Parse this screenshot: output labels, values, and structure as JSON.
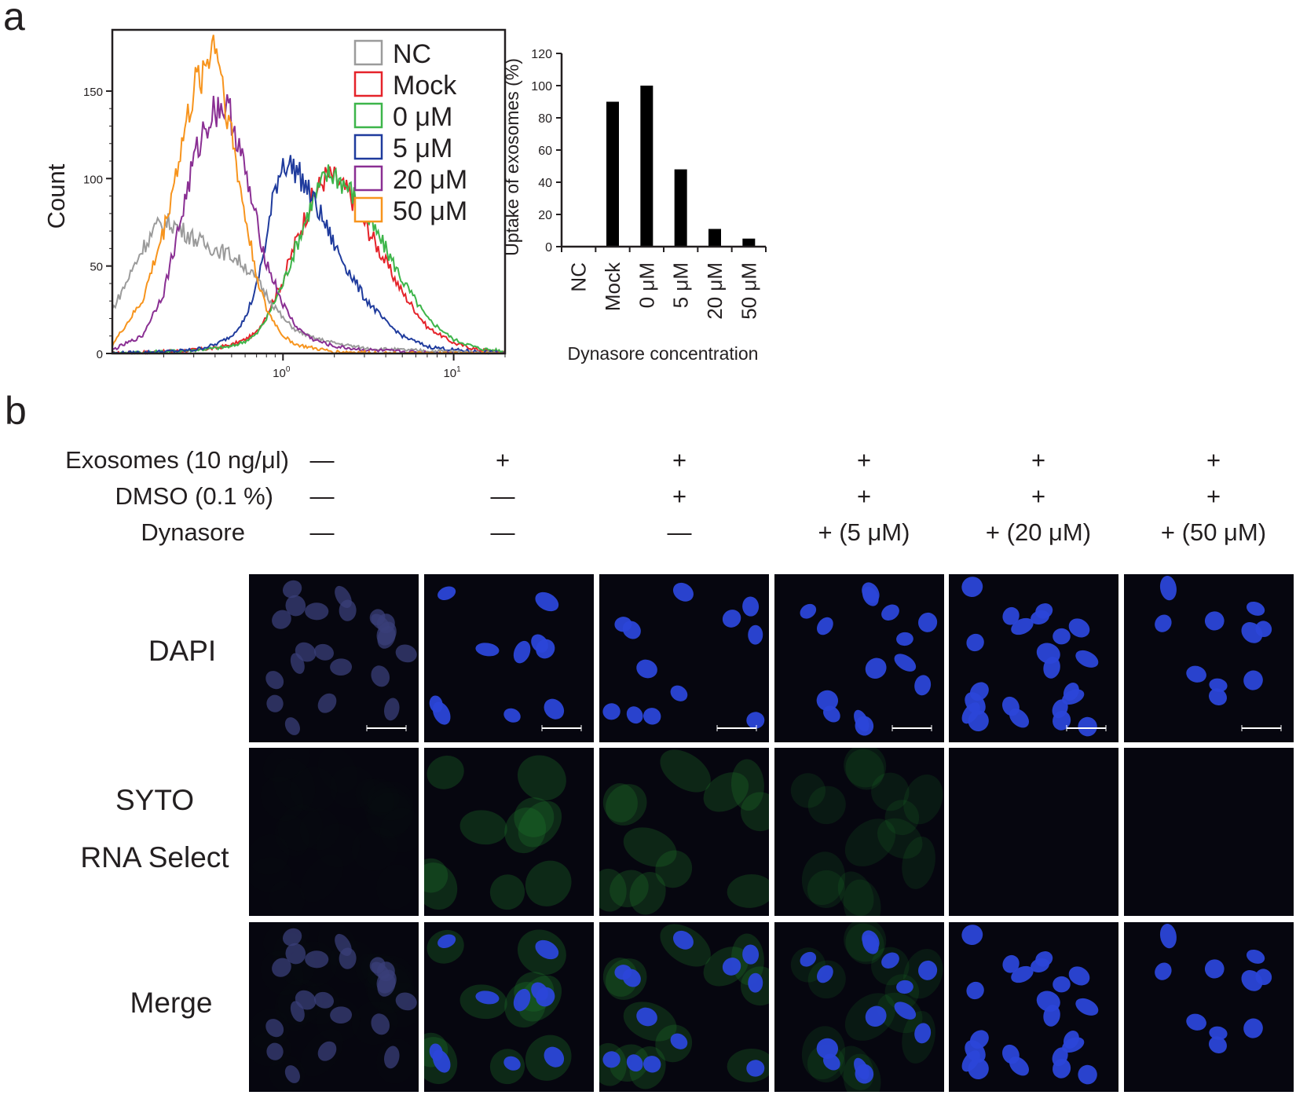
{
  "panel_a": {
    "letter": "a",
    "histogram": {
      "y_label": "Count",
      "y_ticks": [
        "0",
        "50",
        "100",
        "150"
      ],
      "x_ticks": [
        {
          "base": "10",
          "exp": "0"
        },
        {
          "base": "10",
          "exp": "1"
        }
      ],
      "legend": [
        {
          "name": "NC",
          "color": "#9b9b9b"
        },
        {
          "name": "Mock",
          "color": "#e5232a"
        },
        {
          "name": "0 μM",
          "color": "#3db54a"
        },
        {
          "name": "5 μM",
          "color": "#1f3b9d"
        },
        {
          "name": "20 μM",
          "color": "#8a2f93"
        },
        {
          "name": "50 μM",
          "color": "#f7941d"
        }
      ]
    }
  },
  "chart_data": [
    {
      "type": "line",
      "ylabel": "Count",
      "xscale": "log",
      "ylim": [
        0,
        185
      ],
      "xlim": [
        0.1,
        20
      ],
      "series": [
        {
          "name": "NC",
          "color": "#9b9b9b",
          "x": [
            0.1,
            0.12,
            0.15,
            0.18,
            0.22,
            0.26,
            0.3,
            0.35,
            0.4,
            0.5,
            0.6,
            0.7,
            0.85,
            1.0,
            1.2,
            1.5,
            2.0,
            3.0,
            5.0,
            10,
            20
          ],
          "y": [
            25,
            40,
            60,
            72,
            75,
            70,
            66,
            62,
            60,
            56,
            50,
            42,
            30,
            20,
            13,
            9,
            6,
            3,
            2,
            1,
            0
          ]
        },
        {
          "name": "Mock",
          "color": "#e5232a",
          "x": [
            0.1,
            0.2,
            0.3,
            0.4,
            0.5,
            0.6,
            0.7,
            0.8,
            1.0,
            1.2,
            1.5,
            1.8,
            2.0,
            2.5,
            3.0,
            4.0,
            5.0,
            7.0,
            10,
            14,
            20
          ],
          "y": [
            0,
            1,
            2,
            3,
            5,
            8,
            12,
            22,
            42,
            65,
            90,
            102,
            100,
            90,
            75,
            52,
            35,
            15,
            6,
            2,
            1
          ]
        },
        {
          "name": "0 μM",
          "color": "#3db54a",
          "x": [
            0.1,
            0.2,
            0.3,
            0.4,
            0.5,
            0.6,
            0.7,
            0.8,
            1.0,
            1.2,
            1.5,
            1.8,
            2.0,
            2.5,
            3.0,
            4.0,
            5.0,
            7.0,
            10,
            14,
            20
          ],
          "y": [
            0,
            1,
            2,
            3,
            4,
            7,
            11,
            20,
            40,
            62,
            88,
            102,
            103,
            93,
            80,
            60,
            42,
            20,
            8,
            3,
            1
          ]
        },
        {
          "name": "5 μM",
          "color": "#1f3b9d",
          "x": [
            0.1,
            0.2,
            0.3,
            0.4,
            0.5,
            0.6,
            0.7,
            0.8,
            0.9,
            1.0,
            1.2,
            1.5,
            1.8,
            2.0,
            2.5,
            3.0,
            4.0,
            5.0,
            7.0,
            10,
            20
          ],
          "y": [
            0,
            1,
            2,
            5,
            10,
            20,
            38,
            65,
            95,
            110,
            105,
            88,
            72,
            62,
            45,
            32,
            18,
            10,
            4,
            2,
            0
          ]
        },
        {
          "name": "20 μM",
          "color": "#8a2f93",
          "x": [
            0.1,
            0.15,
            0.2,
            0.25,
            0.3,
            0.35,
            0.4,
            0.45,
            0.5,
            0.55,
            0.6,
            0.7,
            0.8,
            1.0,
            1.2,
            1.5,
            2.0,
            3.0,
            5.0,
            10,
            20
          ],
          "y": [
            2,
            10,
            35,
            75,
            110,
            130,
            140,
            142,
            135,
            120,
            103,
            75,
            52,
            28,
            15,
            8,
            4,
            2,
            1,
            0,
            0
          ]
        },
        {
          "name": "50 μM",
          "color": "#f7941d",
          "x": [
            0.1,
            0.15,
            0.2,
            0.25,
            0.3,
            0.35,
            0.38,
            0.4,
            0.42,
            0.45,
            0.5,
            0.55,
            0.6,
            0.7,
            0.8,
            1.0,
            1.2,
            1.5,
            2.0,
            5.0,
            20
          ],
          "y": [
            5,
            30,
            70,
            115,
            150,
            165,
            175,
            180,
            170,
            150,
            125,
            100,
            78,
            45,
            25,
            10,
            5,
            3,
            1,
            0,
            0
          ]
        }
      ]
    },
    {
      "type": "bar",
      "categories": [
        "NC",
        "Mock",
        "0 μM",
        "5 μM",
        "20 μM",
        "50 μM"
      ],
      "values": [
        0,
        90,
        100,
        48,
        11,
        5
      ],
      "ylabel": "Uptake of exosomes (%)",
      "xlabel": "Dynasore concentration",
      "ylim": [
        0,
        120
      ],
      "yticks": [
        0,
        20,
        40,
        60,
        80,
        100,
        120
      ]
    }
  ],
  "panel_b": {
    "letter": "b",
    "conditions": [
      {
        "label": "Exosomes (10 ng/μl)",
        "values": [
          "—",
          "+",
          "+",
          "+",
          "+",
          "+"
        ]
      },
      {
        "label": "DMSO (0.1 %)",
        "values": [
          "—",
          "—",
          "+",
          "+",
          "+",
          "+"
        ]
      },
      {
        "label": "Dynasore",
        "values": [
          "—",
          "—",
          "—",
          "+ (5 μM)",
          "+ (20 μM)",
          "+ (50 μM)"
        ]
      }
    ],
    "rows": [
      {
        "label_lines": [
          "DAPI"
        ]
      },
      {
        "label_lines": [
          "SYTO",
          "RNA Select"
        ]
      },
      {
        "label_lines": [
          "Merge"
        ]
      }
    ]
  }
}
